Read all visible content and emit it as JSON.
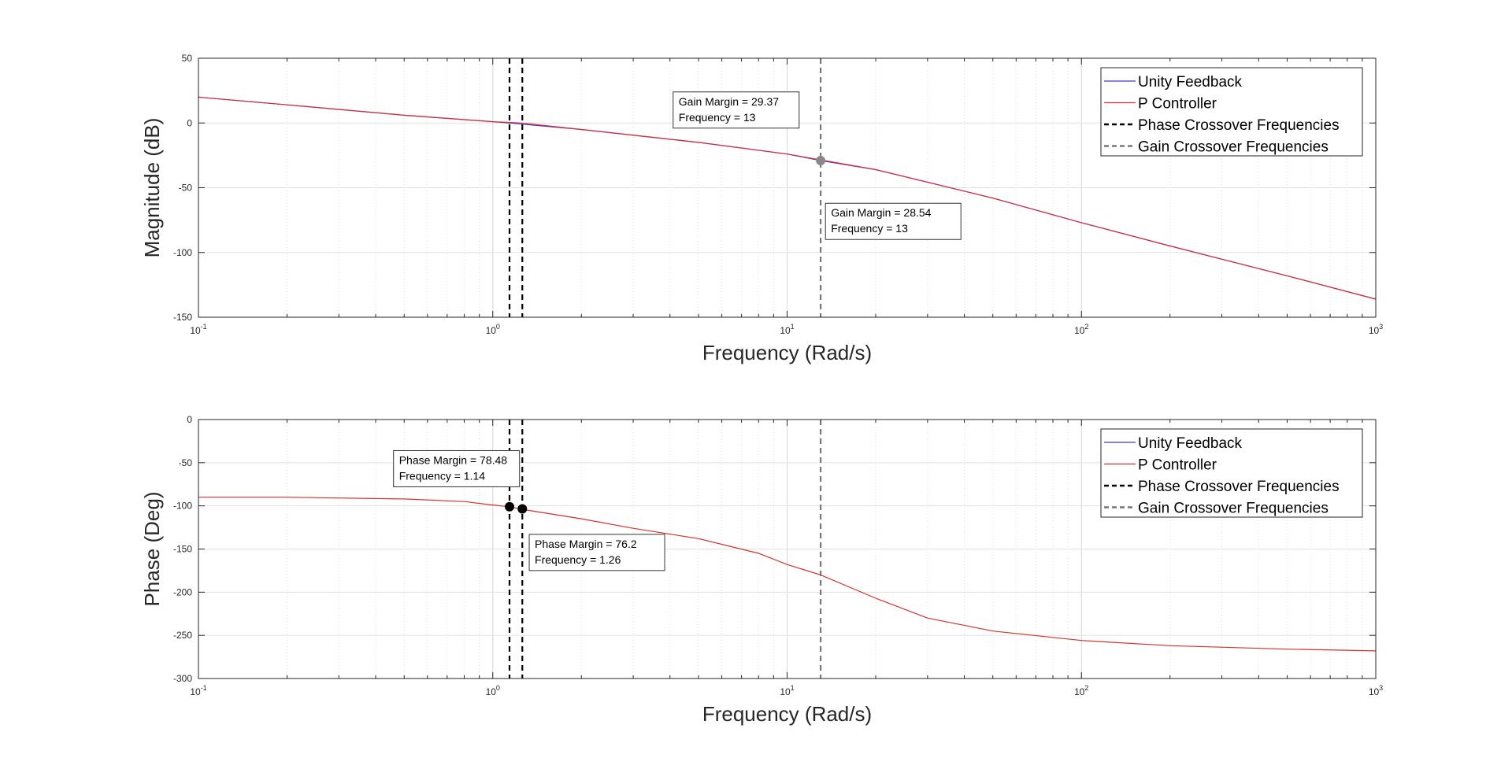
{
  "chart_data": [
    {
      "type": "line",
      "xscale": "log",
      "xlim": [
        0.1,
        1000
      ],
      "ylim": [
        -150,
        50
      ],
      "xlabel": "Frequency (Rad/s)",
      "ylabel": "Magnitude (dB)",
      "grid": true,
      "x_ticks": [
        "10^-1",
        "10^0",
        "10^1",
        "10^2",
        "10^3"
      ],
      "y_ticks": [
        "50",
        "0",
        "-50",
        "-100",
        "-150"
      ],
      "y_tick_values": [
        50,
        0,
        -50,
        -100,
        -150
      ],
      "legend": {
        "placement": "top-right",
        "entries": [
          {
            "label": "Unity Feedback",
            "color": "#3b3bd6",
            "style": "solid"
          },
          {
            "label": "P Controller",
            "color": "#d62f2f",
            "style": "solid"
          },
          {
            "label": "Phase Crossover Frequencies",
            "color": "#000000",
            "style": "dashed"
          },
          {
            "label": "Gain Crossover Frequencies",
            "color": "#777777",
            "style": "dashed"
          }
        ]
      },
      "series": [
        {
          "color": "#3b3bd6",
          "x": [
            0.1,
            0.2,
            0.5,
            1,
            1.14,
            2,
            5,
            10,
            13,
            20,
            50,
            100,
            200,
            500,
            1000
          ],
          "y": [
            20,
            14,
            6,
            1,
            0,
            -5,
            -15,
            -24,
            -29,
            -36,
            -58,
            -77,
            -95,
            -118,
            -136
          ]
        },
        {
          "color": "#d62f2f",
          "x": [
            0.1,
            0.2,
            0.5,
            1,
            1.26,
            2,
            5,
            10,
            13,
            20,
            50,
            100,
            200,
            500,
            1000
          ],
          "y": [
            20,
            14,
            6,
            1,
            0,
            -5,
            -15,
            -24,
            -28.5,
            -36,
            -58,
            -77,
            -95,
            -118,
            -136
          ]
        }
      ],
      "vlines": [
        {
          "x": 1.14,
          "color": "#000000"
        },
        {
          "x": 1.26,
          "color": "#000000"
        },
        {
          "x": 13,
          "color": "#777777"
        }
      ],
      "markers": [
        {
          "x": 13,
          "y": -29,
          "color": "#888888"
        }
      ],
      "annotations": [
        {
          "lines": [
            "Gain Margin = 29.37",
            "Frequency = 13"
          ],
          "anchor_x": 4.1,
          "anchor_y": 24
        },
        {
          "lines": [
            "Gain Margin = 28.54",
            "Frequency = 13"
          ],
          "anchor_x": 13.5,
          "anchor_y": -62
        }
      ]
    },
    {
      "type": "line",
      "xscale": "log",
      "xlim": [
        0.1,
        1000
      ],
      "ylim": [
        -300,
        0
      ],
      "xlabel": "Frequency (Rad/s)",
      "ylabel": "Phase (Deg)",
      "grid": true,
      "x_ticks": [
        "10^-1",
        "10^0",
        "10^1",
        "10^2",
        "10^3"
      ],
      "y_ticks": [
        "0",
        "-50",
        "-100",
        "-150",
        "-200",
        "-250",
        "-300"
      ],
      "y_tick_values": [
        0,
        -50,
        -100,
        -150,
        -200,
        -250,
        -300
      ],
      "legend": {
        "placement": "top-right",
        "entries": [
          {
            "label": "Unity Feedback",
            "color": "#3b3bd6",
            "style": "solid"
          },
          {
            "label": "P Controller",
            "color": "#d62f2f",
            "style": "solid"
          },
          {
            "label": "Phase Crossover Frequencies",
            "color": "#000000",
            "style": "dashed"
          },
          {
            "label": "Gain Crossover Frequencies",
            "color": "#777777",
            "style": "dashed"
          }
        ]
      },
      "series": [
        {
          "color": "#d62f2f",
          "x": [
            0.1,
            0.2,
            0.5,
            0.8,
            1,
            1.14,
            1.26,
            2,
            3,
            5,
            8,
            10,
            13,
            20,
            30,
            50,
            100,
            200,
            500,
            1000
          ],
          "y": [
            -90,
            -90,
            -92,
            -95,
            -99,
            -101,
            -104,
            -115,
            -126,
            -138,
            -155,
            -168,
            -180,
            -207,
            -230,
            -245,
            -256,
            -262,
            -266,
            -268
          ]
        }
      ],
      "vlines": [
        {
          "x": 1.14,
          "color": "#000000"
        },
        {
          "x": 1.26,
          "color": "#000000"
        },
        {
          "x": 13,
          "color": "#777777"
        }
      ],
      "markers": [
        {
          "x": 1.14,
          "y": -101,
          "color": "#000000"
        },
        {
          "x": 1.26,
          "y": -103.5,
          "color": "#000000"
        }
      ],
      "annotations": [
        {
          "lines": [
            "Phase Margin = 78.48",
            "Frequency = 1.14"
          ],
          "anchor_x": 0.46,
          "anchor_y": -36
        },
        {
          "lines": [
            "Phase Margin = 76.2",
            "Frequency = 1.26"
          ],
          "anchor_x": 1.33,
          "anchor_y": -133
        }
      ]
    }
  ]
}
